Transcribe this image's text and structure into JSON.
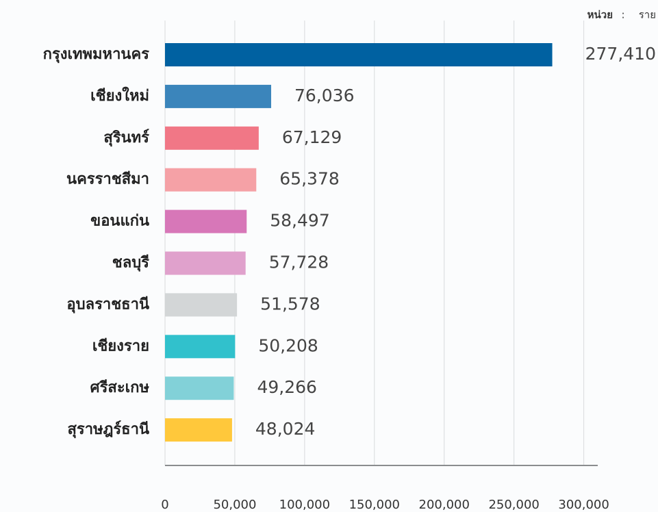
{
  "chart_data": {
    "type": "hbar",
    "unit_label": "หน่วย",
    "unit_sep": ":",
    "unit": "ราย",
    "categories": [
      "กรุงเทพมหานคร",
      "เชียงใหม่",
      "สุรินทร์",
      "นครราชสีมา",
      "ขอนแก่น",
      "ชลบุรี",
      "อุบลราชธานี",
      "เชียงราย",
      "ศรีสะเกษ",
      "สุราษฎร์ธานี"
    ],
    "values": [
      277410,
      76036,
      67129,
      65378,
      58497,
      57728,
      51578,
      50208,
      49266,
      48024
    ],
    "value_labels": [
      "277,410",
      "76,036",
      "67,129",
      "65,378",
      "58,497",
      "57,728",
      "51,578",
      "50,208",
      "49,266",
      "48,024"
    ],
    "colors": [
      "#0061a1",
      "#3b85bb",
      "#f17786",
      "#f5a1a6",
      "#d777b8",
      "#e0a1cc",
      "#d3d6d7",
      "#31c1cc",
      "#82d1d8",
      "#ffc83b"
    ],
    "xlim": [
      0,
      310000
    ],
    "xticks": [
      0,
      {
        "value": 50000,
        "label": "50,000"
      },
      {
        "value": 100000,
        "label": "100,000"
      },
      {
        "value": 150000,
        "label": "150,000"
      },
      {
        "value": 200000,
        "label": "200,000"
      },
      {
        "value": 250000,
        "label": "250,000"
      },
      {
        "value": 300000,
        "label": "300,000"
      }
    ],
    "grid": true
  }
}
